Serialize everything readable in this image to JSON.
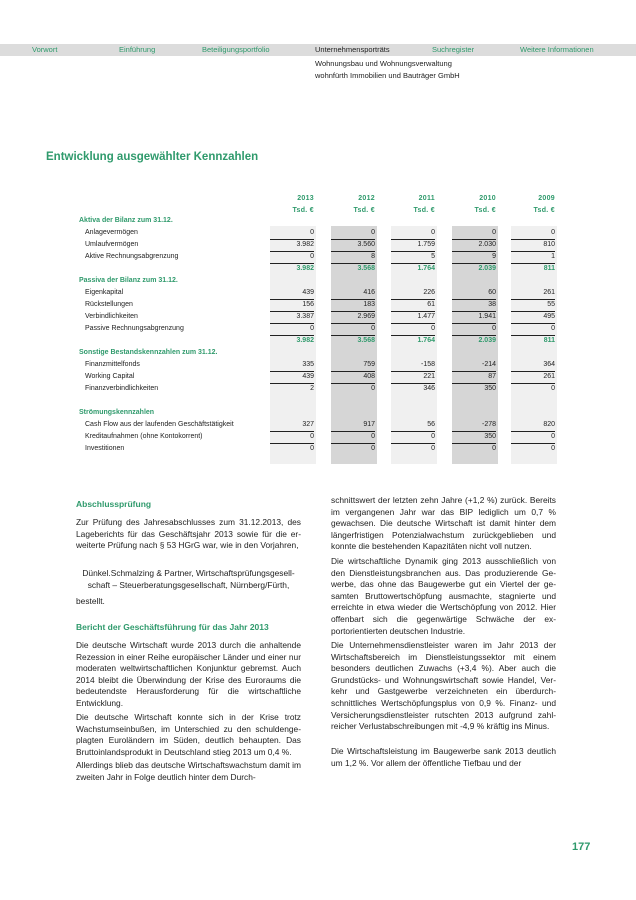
{
  "nav": {
    "items": [
      "Vorwort",
      "Einführung",
      "Beteiligungsportfolio",
      "Unternehmensporträts",
      "Suchregister",
      "Weitere Informationen"
    ],
    "active": "Unternehmensporträts",
    "sub1": "Wohnungsbau und Wohnungsverwaltung",
    "sub2": "wohnfürth Immobilien und Bauträger GmbH"
  },
  "title": "Entwicklung ausgewählter Kennzahlen",
  "colors": {
    "accent": "#2f9a6c",
    "nav_bg": "#dcdcdc"
  },
  "table": {
    "years": [
      "2013",
      "2012",
      "2011",
      "2010",
      "2009"
    ],
    "unit": "Tsd. €",
    "rows": [
      {
        "type": "section",
        "label": "Aktiva der Bilanz zum 31.12."
      },
      {
        "type": "item",
        "label": "Anlagevermögen",
        "values": [
          "0",
          "0",
          "0",
          "0",
          "0"
        ],
        "ul": true
      },
      {
        "type": "item",
        "label": "Umlaufvermögen",
        "values": [
          "3.982",
          "3.560",
          "1.759",
          "2.030",
          "810"
        ],
        "ul": true
      },
      {
        "type": "item",
        "label": "Aktive Rechnungsabgrenzung",
        "values": [
          "0",
          "8",
          "5",
          "9",
          "1"
        ],
        "ul": true
      },
      {
        "type": "sum",
        "label": "",
        "values": [
          "3.982",
          "3.568",
          "1.764",
          "2.039",
          "811"
        ]
      },
      {
        "type": "section",
        "label": "Passiva der Bilanz zum 31.12."
      },
      {
        "type": "item",
        "label": "Eigenkapital",
        "values": [
          "439",
          "416",
          "226",
          "60",
          "261"
        ],
        "ul": true
      },
      {
        "type": "item",
        "label": "Rückstellungen",
        "values": [
          "156",
          "183",
          "61",
          "38",
          "55"
        ],
        "ul": true
      },
      {
        "type": "item",
        "label": "Verbindlichkeiten",
        "values": [
          "3.387",
          "2.969",
          "1.477",
          "1.941",
          "495"
        ],
        "ul": true
      },
      {
        "type": "item",
        "label": "Passive Rechnungsabgrenzung",
        "values": [
          "0",
          "0",
          "0",
          "0",
          "0"
        ],
        "ul": true
      },
      {
        "type": "sum",
        "label": "",
        "values": [
          "3.982",
          "3.568",
          "1.764",
          "2.039",
          "811"
        ]
      },
      {
        "type": "section",
        "label": "Sonstige Bestandskennzahlen zum 31.12."
      },
      {
        "type": "item",
        "label": "Finanzmittelfonds",
        "values": [
          "335",
          "759",
          "-158",
          "-214",
          "364"
        ],
        "ul": true
      },
      {
        "type": "item",
        "label": "Working Capital",
        "values": [
          "439",
          "408",
          "221",
          "87",
          "261"
        ],
        "ul": true
      },
      {
        "type": "item",
        "label": "Finanzverbindlichkeiten",
        "values": [
          "2",
          "0",
          "346",
          "350",
          "0"
        ],
        "ul": false
      },
      {
        "type": "blank",
        "label": ""
      },
      {
        "type": "section",
        "label": "Strömungskennzahlen"
      },
      {
        "type": "item",
        "label": "Cash Flow aus der laufenden Geschäftstätigkeit",
        "values": [
          "327",
          "917",
          "56",
          "-278",
          "820"
        ],
        "ul": true
      },
      {
        "type": "item",
        "label": "Kreditaufnahmen (ohne Kontokorrent)",
        "values": [
          "0",
          "0",
          "0",
          "350",
          "0"
        ],
        "ul": true
      },
      {
        "type": "item",
        "label": "Investitionen",
        "values": [
          "0",
          "0",
          "0",
          "0",
          "0"
        ],
        "ul": false
      }
    ]
  },
  "text": {
    "h1": "Abschlussprüfung",
    "p1": "Zur Prüfung des Jahresabschlusses zum 31.12.2013, des Lageberichts für das Geschäftsjahr 2013 sowie für die er­weiterte Prüfung nach § 53 HGrG war, wie in den Vorjah­ren,",
    "p2": "Dünkel.Schmalzing & Partner, Wirtschaftsprüfungsgesell­schaft – Steuerberatungsgesellschaft, Nürnberg/Fürth,",
    "p3": "bestellt.",
    "h2": "Bericht der Geschäftsführung für das Jahr 2013",
    "p4": "Die deutsche Wirtschaft wurde 2013 durch die anhaltende Rezession in einer Reihe europäischer Länder und einer nur moderaten weltwirtschaftlichen Konjunktur gebremst. Auch 2014 bleibt die Überwindung der Krise des Euro­raums die bedeutendste Herausforderung für die wirt­schaftliche Entwicklung.",
    "p5": "Die deutsche Wirtschaft konnte sich in der Krise trotz Wachstumseinbußen, im Unterschied zu den schuldenge­plagten Euroländern im Süden, deutlich behaupten. Das Bruttoinlandsprodukt in Deutschland stieg 2013 um 0,4 %.",
    "p6": "Allerdings blieb das deutsche Wirtschaftswachstum damit im zweiten Jahr in Folge deutlich hinter dem Durch-",
    "r1": "schnittswert der letzten zehn Jahre (+1,2 %) zurück. Be­reits im vergangenen Jahr war das BIP lediglich um 0,7 % gewachsen. Die deutsche Wirtschaft ist damit hinter dem längerfristigen Potenzialwachstum zurückgeblieben und konnte die bestehenden Kapazitäten nicht voll nutzen.",
    "r2": "Die wirtschaftliche Dynamik ging 2013 ausschließlich von den Dienstleistungsbranchen aus. Das produzierende Ge­werbe, das ohne das Baugewerbe gut ein Viertel der ge­samten Bruttowertschöpfung ausmachte, stagnierte und erreichte in etwa wieder die Wertschöpfung von 2012. Hier offenbart sich die gegenwärtige Schwäche der ex­portorientierten deutschen Industrie.",
    "r3": "Die Unternehmensdienstleister waren im Jahr 2013 der Wirtschaftsbereich im Dienstleistungssektor mit einem besonders deutlichen Zuwachs (+3,4 %). Aber auch die Grundstücks- und Wohnungswirtschaft sowie Handel, Ver­kehr und Gastgewerbe verzeichneten ein überdurch­schnittliches Wertschöpfungsplus von 0,9 %. Finanz- und Versicherungsdienstleister rutschten 2013 aufgrund zahl­reicher Verlustabschreibungen mit -4,9 % kräftig ins Mi­nus.",
    "r4": "Die Wirtschaftsleistung im Baugewerbe sank 2013 deut­lich um 1,2 %. Vor allem der öffentliche Tiefbau und der"
  },
  "page_number": "177"
}
